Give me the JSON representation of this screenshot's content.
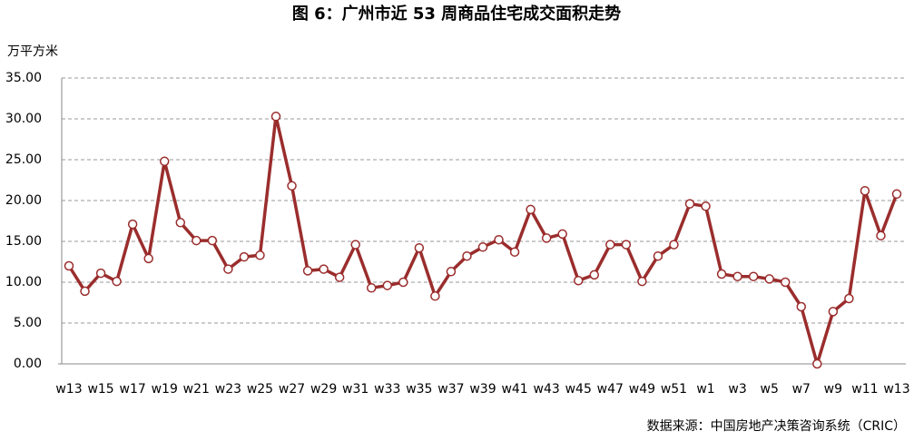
{
  "chart_data": {
    "type": "line",
    "title": "图 6：广州市近 53 周商品住宅成交面积走势",
    "y_label": "万平方米",
    "source": "数据来源：中国房地产决策咨询系统（CRIC）",
    "categories": [
      "w13",
      null,
      "w15",
      null,
      "w17",
      null,
      "w19",
      null,
      "w21",
      null,
      "w23",
      null,
      "w25",
      null,
      "w27",
      null,
      "w29",
      null,
      "w31",
      null,
      "w33",
      null,
      "w35",
      null,
      "w37",
      null,
      "w39",
      null,
      "w41",
      null,
      "w43",
      null,
      "w45",
      null,
      "w47",
      null,
      "w49",
      null,
      "w51",
      null,
      "w1",
      null,
      "w3",
      null,
      "w5",
      null,
      "w7",
      null,
      "w9",
      null,
      "w11",
      null,
      "w13"
    ],
    "series": [
      {
        "color": "#9b2d2d",
        "values": [
          12.0,
          8.9,
          11.1,
          10.1,
          17.1,
          12.9,
          24.8,
          17.3,
          15.1,
          15.1,
          11.6,
          13.1,
          13.3,
          30.3,
          21.8,
          11.4,
          11.6,
          10.6,
          14.6,
          9.3,
          9.6,
          10.0,
          14.2,
          8.3,
          11.3,
          13.2,
          14.3,
          15.2,
          13.7,
          18.9,
          15.4,
          15.9,
          10.2,
          10.9,
          14.6,
          14.6,
          10.1,
          13.2,
          14.6,
          19.6,
          19.3,
          11.0,
          10.7,
          10.7,
          10.4,
          10.0,
          7.0,
          0,
          6.4,
          8.0,
          21.2,
          15.7,
          20.8
        ]
      }
    ],
    "ylim": [
      0,
      35
    ],
    "yticks": [
      {
        "value": 0,
        "label": "0.00"
      },
      {
        "value": 5,
        "label": "5.00"
      },
      {
        "value": 10,
        "label": "10.00"
      },
      {
        "value": 15,
        "label": "15.00"
      },
      {
        "value": 20,
        "label": "20.00"
      },
      {
        "value": 25,
        "label": "25.00"
      },
      {
        "value": 30,
        "label": "30.00"
      },
      {
        "value": 35,
        "label": "35.00"
      }
    ],
    "grid": true
  }
}
